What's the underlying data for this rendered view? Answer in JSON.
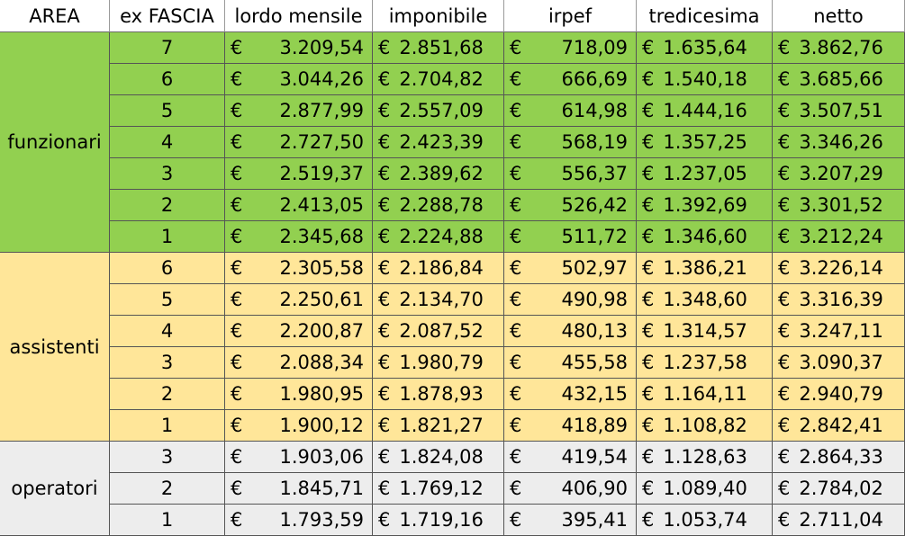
{
  "headers": [
    "AREA",
    "ex FASCIA",
    "lordo mensile",
    "imponibile",
    "irpef",
    "tredicesima",
    "netto"
  ],
  "currency": "€",
  "colors": {
    "funzionari": "#92d050",
    "assistenti": "#ffe699",
    "operatori": "#ededed"
  },
  "groups": [
    {
      "area": "funzionari",
      "rows": [
        {
          "fascia": "7",
          "lordo": "3.209,54",
          "imponibile": "2.851,68",
          "irpef": "718,09",
          "tredicesima": "1.635,64",
          "netto": "3.862,76"
        },
        {
          "fascia": "6",
          "lordo": "3.044,26",
          "imponibile": "2.704,82",
          "irpef": "666,69",
          "tredicesima": "1.540,18",
          "netto": "3.685,66"
        },
        {
          "fascia": "5",
          "lordo": "2.877,99",
          "imponibile": "2.557,09",
          "irpef": "614,98",
          "tredicesima": "1.444,16",
          "netto": "3.507,51"
        },
        {
          "fascia": "4",
          "lordo": "2.727,50",
          "imponibile": "2.423,39",
          "irpef": "568,19",
          "tredicesima": "1.357,25",
          "netto": "3.346,26"
        },
        {
          "fascia": "3",
          "lordo": "2.519,37",
          "imponibile": "2.389,62",
          "irpef": "556,37",
          "tredicesima": "1.237,05",
          "netto": "3.207,29"
        },
        {
          "fascia": "2",
          "lordo": "2.413,05",
          "imponibile": "2.288,78",
          "irpef": "526,42",
          "tredicesima": "1.392,69",
          "netto": "3.301,52"
        },
        {
          "fascia": "1",
          "lordo": "2.345,68",
          "imponibile": "2.224,88",
          "irpef": "511,72",
          "tredicesima": "1.346,60",
          "netto": "3.212,24"
        }
      ]
    },
    {
      "area": "assistenti",
      "rows": [
        {
          "fascia": "6",
          "lordo": "2.305,58",
          "imponibile": "2.186,84",
          "irpef": "502,97",
          "tredicesima": "1.386,21",
          "netto": "3.226,14"
        },
        {
          "fascia": "5",
          "lordo": "2.250,61",
          "imponibile": "2.134,70",
          "irpef": "490,98",
          "tredicesima": "1.348,60",
          "netto": "3.316,39"
        },
        {
          "fascia": "4",
          "lordo": "2.200,87",
          "imponibile": "2.087,52",
          "irpef": "480,13",
          "tredicesima": "1.314,57",
          "netto": "3.247,11"
        },
        {
          "fascia": "3",
          "lordo": "2.088,34",
          "imponibile": "1.980,79",
          "irpef": "455,58",
          "tredicesima": "1.237,58",
          "netto": "3.090,37"
        },
        {
          "fascia": "2",
          "lordo": "1.980,95",
          "imponibile": "1.878,93",
          "irpef": "432,15",
          "tredicesima": "1.164,11",
          "netto": "2.940,79"
        },
        {
          "fascia": "1",
          "lordo": "1.900,12",
          "imponibile": "1.821,27",
          "irpef": "418,89",
          "tredicesima": "1.108,82",
          "netto": "2.842,41"
        }
      ]
    },
    {
      "area": "operatori",
      "rows": [
        {
          "fascia": "3",
          "lordo": "1.903,06",
          "imponibile": "1.824,08",
          "irpef": "419,54",
          "tredicesima": "1.128,63",
          "netto": "2.864,33"
        },
        {
          "fascia": "2",
          "lordo": "1.845,71",
          "imponibile": "1.769,12",
          "irpef": "406,90",
          "tredicesima": "1.089,40",
          "netto": "2.784,02"
        },
        {
          "fascia": "1",
          "lordo": "1.793,59",
          "imponibile": "1.719,16",
          "irpef": "395,41",
          "tredicesima": "1.053,74",
          "netto": "2.711,04"
        }
      ]
    }
  ]
}
